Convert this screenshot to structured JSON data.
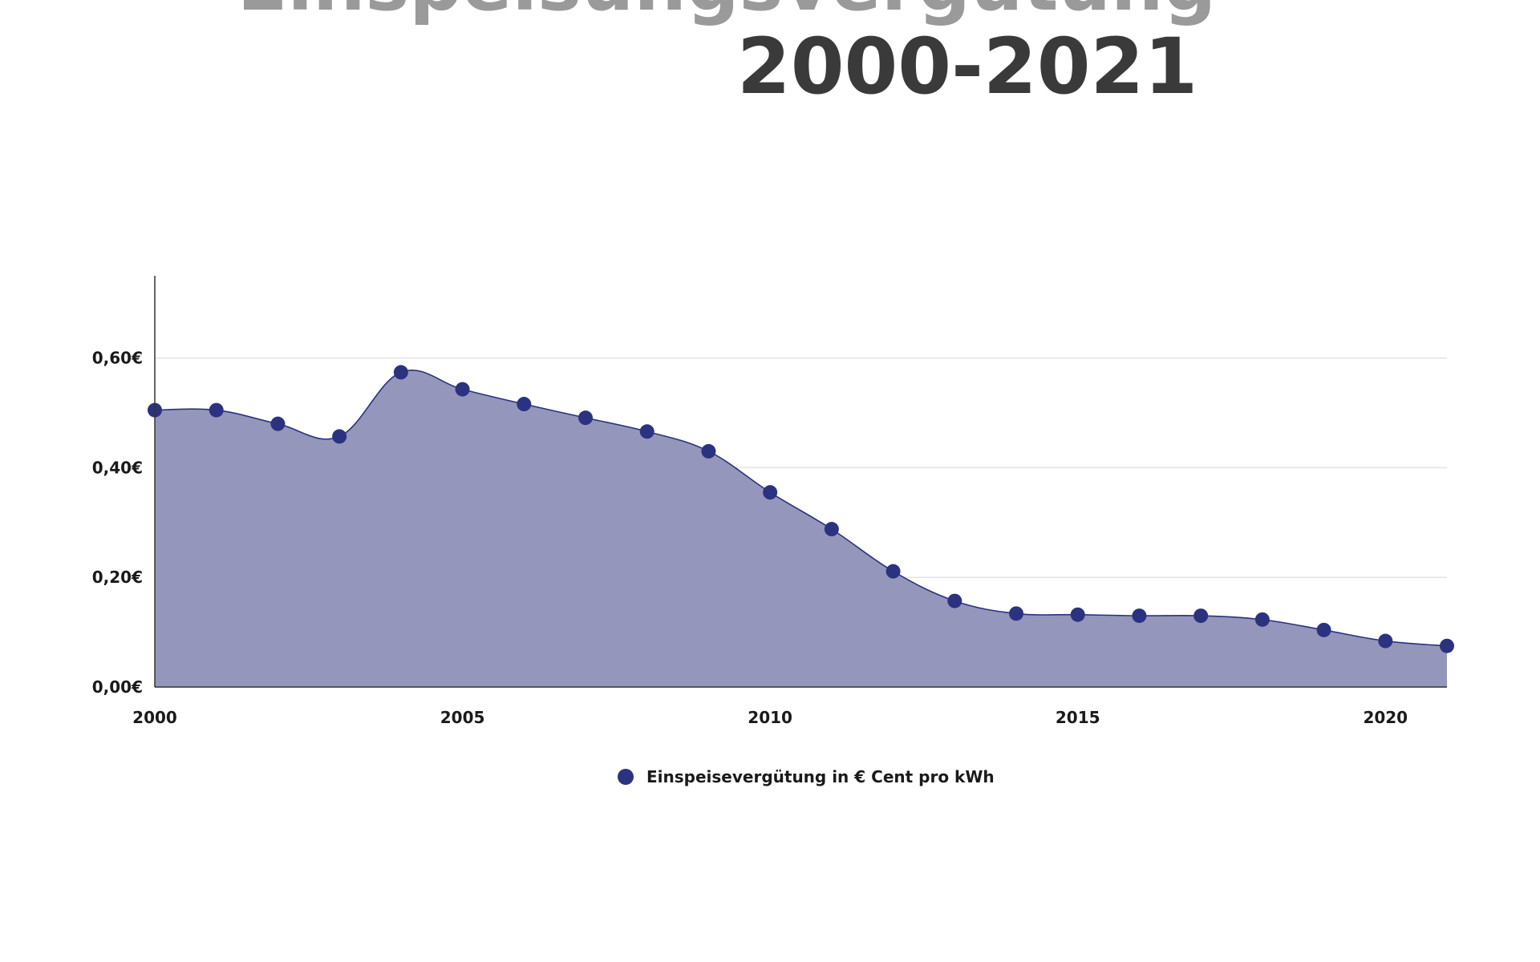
{
  "chart_data": {
    "type": "area",
    "title": "Einspeisungsvergütung",
    "subtitle": "2000-2021",
    "x": [
      2000,
      2001,
      2002,
      2003,
      2004,
      2005,
      2006,
      2007,
      2008,
      2009,
      2010,
      2011,
      2012,
      2013,
      2014,
      2015,
      2016,
      2017,
      2018,
      2019,
      2020,
      2021
    ],
    "series": [
      {
        "name": "Einspeisevergütung in € Cent pro kWh",
        "color": "#2b3280",
        "fill": "#9497bb",
        "values": [
          0.505,
          0.505,
          0.48,
          0.457,
          0.574,
          0.543,
          0.516,
          0.491,
          0.466,
          0.43,
          0.355,
          0.288,
          0.211,
          0.157,
          0.134,
          0.132,
          0.13,
          0.13,
          0.123,
          0.104,
          0.084,
          0.075
        ]
      }
    ],
    "xlim": [
      2000,
      2021
    ],
    "xticks": [
      2000,
      2005,
      2010,
      2015,
      2020
    ],
    "ylim": [
      0,
      0.75
    ],
    "yticks": [
      {
        "value": 0,
        "label": "0,00€"
      },
      {
        "value": 0.2,
        "label": "0,20€"
      },
      {
        "value": 0.4,
        "label": "0,40€"
      },
      {
        "value": 0.6,
        "label": "0,60€"
      }
    ],
    "grid": true
  }
}
